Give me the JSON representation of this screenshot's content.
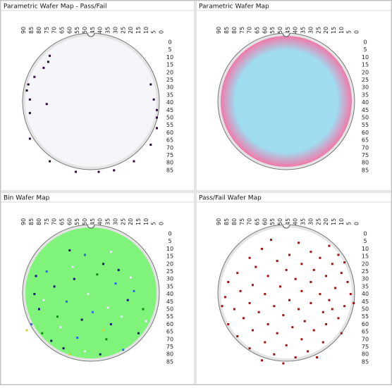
{
  "panels": [
    {
      "title": "Parametric Wafer Map - Pass/Fail",
      "xticks": [
        90,
        85,
        80,
        75,
        70,
        65,
        60,
        55,
        50,
        45,
        40,
        35,
        30,
        25,
        20,
        15,
        10,
        5,
        0
      ],
      "yticks": [
        0,
        5,
        10,
        15,
        20,
        25,
        30,
        35,
        40,
        45,
        50,
        55,
        60,
        65,
        70,
        75,
        80,
        85
      ],
      "wafer_color": "#f6f6fa",
      "bins": [
        {
          "color": "#2a0a3a",
          "dies": [
            [
              73,
              9
            ],
            [
              74,
              13
            ],
            [
              77,
              17
            ],
            [
              83,
              23
            ],
            [
              87,
              28
            ],
            [
              88,
              32
            ],
            [
              86,
              38
            ],
            [
              75,
              41
            ],
            [
              86,
              47
            ],
            [
              86,
              64
            ],
            [
              73,
              79
            ],
            [
              56,
              86
            ],
            [
              41,
              86
            ],
            [
              31,
              85
            ],
            [
              18,
              79
            ],
            [
              7,
              68
            ],
            [
              3,
              57
            ],
            [
              3,
              50
            ],
            [
              3,
              45
            ],
            [
              5,
              38
            ],
            [
              7,
              28
            ]
          ]
        }
      ]
    },
    {
      "title": "Parametric Wafer Map",
      "xticks": [
        90,
        85,
        80,
        75,
        70,
        65,
        60,
        55,
        50,
        45,
        40,
        35,
        30,
        25,
        20,
        15,
        10,
        5,
        0
      ],
      "yticks": [
        0,
        5,
        10,
        15,
        20,
        25,
        30,
        35,
        40,
        45,
        50,
        55,
        60,
        65,
        70,
        75,
        80,
        85
      ],
      "center_color": "#9fdcf0",
      "edge_color": "#f07aaa",
      "bins": []
    },
    {
      "title": "Bin Wafer Map",
      "xticks": [
        90,
        85,
        80,
        75,
        70,
        65,
        60,
        55,
        50,
        45,
        40,
        35,
        30,
        25,
        20,
        15,
        10,
        5,
        0
      ],
      "yticks": [
        0,
        5,
        10,
        15,
        20,
        25,
        30,
        35,
        40,
        45,
        50,
        55,
        60,
        65,
        70,
        75,
        80,
        85
      ],
      "wafer_color": "#80f37a",
      "bins": [
        {
          "color": "#14147a",
          "dies": [
            [
              60,
              11
            ],
            [
              38,
              20
            ],
            [
              82,
              28
            ],
            [
              70,
              35
            ],
            [
              57,
              30
            ],
            [
              22,
              44
            ],
            [
              80,
              50
            ],
            [
              52,
              57
            ],
            [
              33,
              60
            ],
            [
              72,
              71
            ],
            [
              15,
              66
            ],
            [
              40,
              80
            ],
            [
              83,
              40
            ],
            [
              28,
              24
            ],
            [
              64,
              76
            ]
          ]
        },
        {
          "color": "#2a62ff",
          "dies": [
            [
              50,
              14
            ],
            [
              75,
              25
            ],
            [
              30,
              33
            ],
            [
              62,
              45
            ],
            [
              45,
              52
            ],
            [
              18,
              38
            ],
            [
              85,
              60
            ],
            [
              55,
              69
            ],
            [
              25,
              77
            ]
          ]
        },
        {
          "color": "#0a8a0a",
          "dies": [
            [
              42,
              27
            ],
            [
              68,
              55
            ],
            [
              12,
              50
            ],
            [
              36,
              70
            ],
            [
              78,
              66
            ]
          ]
        },
        {
          "color": "#e8e8ff",
          "dies": [
            [
              33,
              12
            ],
            [
              58,
              22
            ],
            [
              20,
              29
            ],
            [
              77,
              44
            ],
            [
              48,
              40
            ],
            [
              10,
              58
            ],
            [
              66,
              62
            ],
            [
              35,
              49
            ],
            [
              50,
              78
            ],
            [
              26,
              55
            ]
          ]
        },
        {
          "color": "#d8d02a",
          "dies": [
            [
              88,
              64
            ],
            [
              60,
              80
            ],
            [
              38,
              64
            ]
          ]
        }
      ]
    },
    {
      "title": "Pass/Fail Wafer Map",
      "xticks": [
        90,
        85,
        80,
        75,
        70,
        65,
        60,
        55,
        50,
        45,
        40,
        35,
        30,
        25,
        20,
        15,
        10,
        5,
        0
      ],
      "yticks": [
        0,
        5,
        10,
        15,
        20,
        25,
        30,
        35,
        40,
        45,
        50,
        55,
        60,
        65,
        70,
        75,
        80,
        85
      ],
      "wafer_color": "#ffffff",
      "bins": [
        {
          "color": "#a01010",
          "dies": [
            [
              56,
              4
            ],
            [
              38,
              6
            ],
            [
              18,
              8
            ],
            [
              62,
              10
            ],
            [
              30,
              12
            ],
            [
              44,
              14
            ],
            [
              12,
              14
            ],
            [
              70,
              16
            ],
            [
              24,
              16
            ],
            [
              52,
              18
            ],
            [
              8,
              19
            ],
            [
              36,
              20
            ],
            [
              16,
              20
            ],
            [
              66,
              22
            ],
            [
              28,
              24
            ],
            [
              46,
              24
            ],
            [
              78,
              26
            ],
            [
              10,
              26
            ],
            [
              58,
              28
            ],
            [
              20,
              28
            ],
            [
              40,
              30
            ],
            [
              84,
              32
            ],
            [
              30,
              32
            ],
            [
              6,
              32
            ],
            [
              68,
              34
            ],
            [
              50,
              35
            ],
            [
              14,
              36
            ],
            [
              76,
              38
            ],
            [
              36,
              38
            ],
            [
              24,
              40
            ],
            [
              60,
              40
            ],
            [
              4,
              40
            ],
            [
              86,
              42
            ],
            [
              44,
              44
            ],
            [
              18,
              44
            ],
            [
              70,
              46
            ],
            [
              30,
              46
            ],
            [
              54,
              48
            ],
            [
              8,
              48
            ],
            [
              80,
              50
            ],
            [
              38,
              50
            ],
            [
              64,
              52
            ],
            [
              22,
              52
            ],
            [
              48,
              54
            ],
            [
              12,
              56
            ],
            [
              74,
              56
            ],
            [
              34,
              58
            ],
            [
              58,
              60
            ],
            [
              84,
              60
            ],
            [
              20,
              60
            ],
            [
              42,
              62
            ],
            [
              68,
              64
            ],
            [
              28,
              64
            ],
            [
              52,
              66
            ],
            [
              10,
              66
            ],
            [
              78,
              68
            ],
            [
              36,
              70
            ],
            [
              60,
              72
            ],
            [
              22,
              72
            ],
            [
              46,
              74
            ],
            [
              70,
              76
            ],
            [
              32,
              78
            ],
            [
              54,
              80
            ],
            [
              40,
              82
            ],
            [
              26,
              82
            ],
            [
              62,
              84
            ],
            [
              48,
              86
            ],
            [
              16,
              50
            ],
            [
              2,
              46
            ],
            [
              88,
              48
            ]
          ]
        }
      ]
    }
  ]
}
